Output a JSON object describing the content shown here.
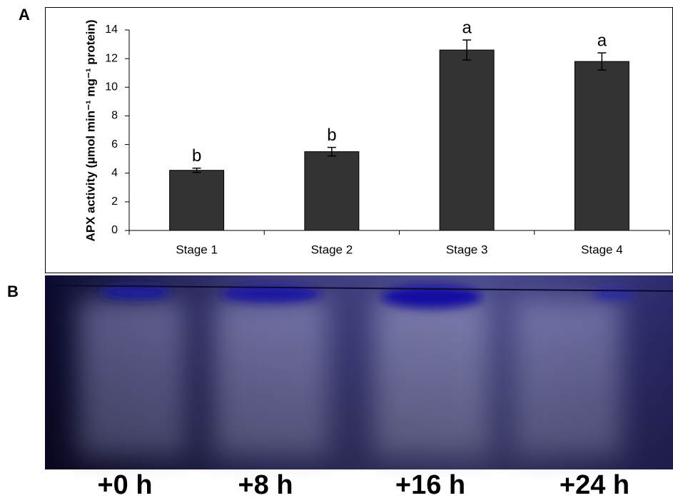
{
  "panels": [
    "A",
    "B"
  ],
  "chart_data": {
    "type": "bar",
    "ylabel": "APX activity (µmol min⁻¹ mg⁻¹ protein)",
    "categories": [
      "Stage 1",
      "Stage 2",
      "Stage 3",
      "Stage 4"
    ],
    "values": [
      4.2,
      5.5,
      12.6,
      11.8
    ],
    "errors": [
      0.15,
      0.3,
      0.7,
      0.6
    ],
    "annotations": [
      "b",
      "b",
      "a",
      "a"
    ],
    "color": "#333333",
    "ylim": [
      0,
      14
    ],
    "yticks": [
      0,
      2,
      4,
      6,
      8,
      10,
      12,
      14
    ]
  },
  "gel": {
    "lanes": [
      "+0 h",
      "+8 h",
      "+16 h",
      "+24 h"
    ]
  }
}
